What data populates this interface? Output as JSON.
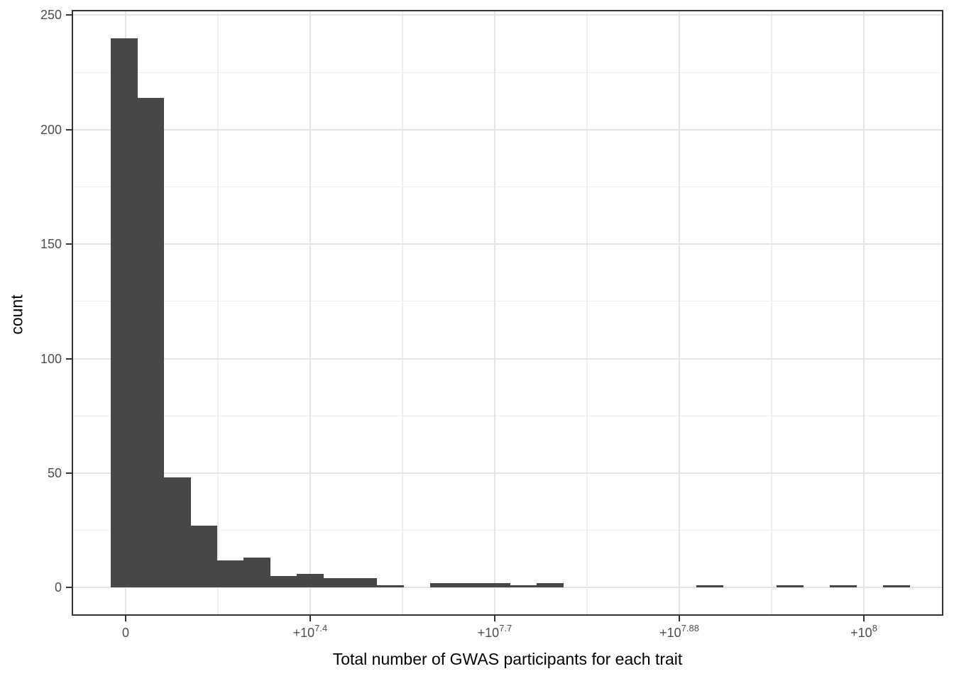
{
  "chart_data": {
    "type": "bar",
    "subtype": "histogram",
    "title": "",
    "xlabel": "Total number of GWAS participants for each trait",
    "ylabel": "count",
    "legend": "none",
    "grid": "on",
    "colors": {
      "bar_fill": "#474747",
      "grid_major": "#e4e4e4",
      "grid_minor": "#eeeeee",
      "panel_border": "#333333",
      "tick_mark": "#333333",
      "tick_label": "#4d4d4d",
      "axis_title": "#000000",
      "background": "#ffffff"
    },
    "y_axis": {
      "min": -12,
      "max": 252,
      "major_ticks": [
        0,
        50,
        100,
        150,
        200,
        250
      ],
      "minor_ticks": [
        25,
        75,
        125,
        175,
        225
      ]
    },
    "x_axis": {
      "note": "pseudo-log transformed axis; tick positions are fractions of panel width",
      "major_ticks": [
        {
          "base": "0",
          "sup": "",
          "pos": 0.0612
        },
        {
          "base": "+10",
          "sup": "7.4",
          "pos": 0.2732
        },
        {
          "base": "+10",
          "sup": "7.7",
          "pos": 0.4853
        },
        {
          "base": "+10",
          "sup": "7.88",
          "pos": 0.6974
        },
        {
          "base": "+10",
          "sup": "8",
          "pos": 0.9095
        }
      ],
      "minor_tick_pos": [
        0.1672,
        0.3793,
        0.5914,
        0.8034
      ]
    },
    "bins": {
      "n_bins": 30,
      "first_bin_left_pos": 0.044,
      "bin_width_pos": 0.03059,
      "counts": [
        240,
        214,
        48,
        27,
        12,
        13,
        5,
        6,
        4,
        4,
        1,
        0,
        2,
        2,
        2,
        1,
        2,
        0,
        0,
        0,
        0,
        0,
        1,
        0,
        0,
        1,
        0,
        1,
        0,
        1
      ]
    }
  }
}
